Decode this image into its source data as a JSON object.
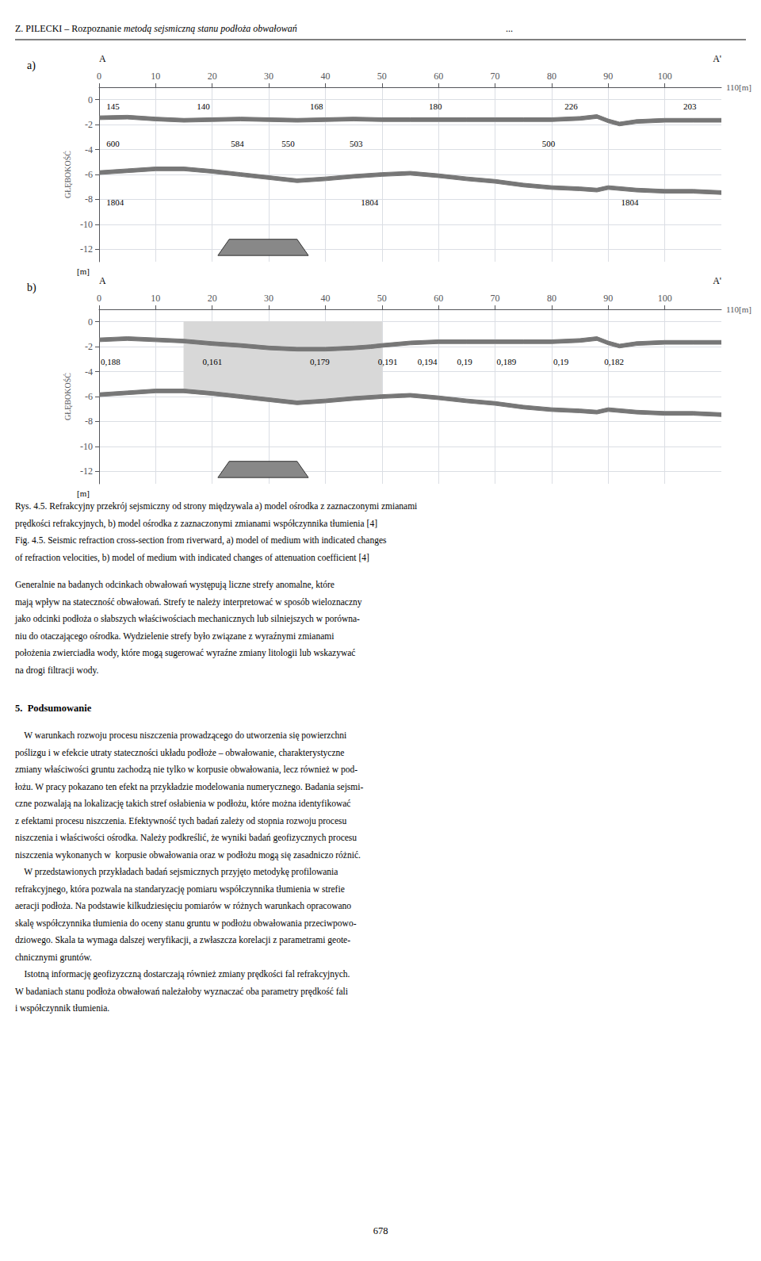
{
  "header": [
    "Z. PILECKI – Rozpoznanie ",
    "metodą sejsmiczną stanu podłoża obwałowań",
    "..."
  ],
  "chart_data": [
    {
      "type": "area",
      "title": "a)",
      "xlim": [
        0,
        110
      ],
      "xticks": [
        0,
        10,
        20,
        30,
        40,
        50,
        60,
        70,
        80,
        90,
        100
      ],
      "ylim": [
        -13,
        1
      ],
      "yticks": [
        0,
        -2,
        -4,
        -6,
        -8,
        -10,
        -12
      ],
      "ylabel": "GŁĘBOKOŚĆ",
      "xlabel": "110[m]",
      "y_unit": "[m]",
      "profile_start": "A",
      "profile_end": "A'",
      "grid": true,
      "series": [
        {
          "color": "#777777",
          "x": [
            0,
            5,
            10,
            15,
            20,
            25,
            30,
            35,
            40,
            45,
            50,
            55,
            60,
            65,
            70,
            75,
            80,
            85,
            88,
            90,
            92,
            95,
            100,
            105,
            110
          ],
          "top": [
            -1.3,
            -1.25,
            -1.4,
            -1.5,
            -1.45,
            -1.4,
            -1.45,
            -1.5,
            -1.45,
            -1.4,
            -1.45,
            -1.45,
            -1.45,
            -1.45,
            -1.45,
            -1.45,
            -1.45,
            -1.35,
            -1.2,
            -1.55,
            -1.8,
            -1.6,
            -1.5,
            -1.5,
            -1.5
          ],
          "bottom": [
            -1.6,
            -1.55,
            -1.7,
            -1.8,
            -1.75,
            -1.7,
            -1.75,
            -1.8,
            -1.75,
            -1.7,
            -1.75,
            -1.75,
            -1.75,
            -1.75,
            -1.75,
            -1.75,
            -1.75,
            -1.65,
            -1.5,
            -1.85,
            -2.1,
            -1.9,
            -1.8,
            -1.8,
            -1.8
          ]
        },
        {
          "color": "#777777",
          "x": [
            0,
            5,
            10,
            15,
            20,
            25,
            30,
            35,
            40,
            45,
            50,
            55,
            60,
            65,
            70,
            75,
            80,
            85,
            88,
            90,
            95,
            100,
            105,
            110
          ],
          "top": [
            -5.7,
            -5.55,
            -5.4,
            -5.4,
            -5.6,
            -5.85,
            -6.1,
            -6.35,
            -6.2,
            -6.0,
            -5.85,
            -5.75,
            -5.95,
            -6.2,
            -6.4,
            -6.7,
            -6.9,
            -7.0,
            -7.1,
            -6.9,
            -7.1,
            -7.2,
            -7.2,
            -7.3
          ],
          "bottom": [
            -6.0,
            -5.85,
            -5.7,
            -5.7,
            -5.9,
            -6.15,
            -6.4,
            -6.65,
            -6.5,
            -6.3,
            -6.15,
            -6.05,
            -6.25,
            -6.5,
            -6.7,
            -7.0,
            -7.2,
            -7.3,
            -7.4,
            -7.2,
            -7.4,
            -7.5,
            -7.5,
            -7.6
          ]
        }
      ],
      "shapes": [
        {
          "color": "#888888",
          "x": [
            21,
            37,
            35,
            23
          ],
          "y": [
            -12.5,
            -12.5,
            -11.2,
            -11.2
          ]
        }
      ],
      "labels": [
        {
          "text": "145",
          "x": 1,
          "y": -0.5
        },
        {
          "text": "140",
          "x": 17,
          "y": -0.5
        },
        {
          "text": "168",
          "x": 37,
          "y": -0.5
        },
        {
          "text": "180",
          "x": 58,
          "y": -0.5
        },
        {
          "text": "226",
          "x": 82,
          "y": -0.5
        },
        {
          "text": "203",
          "x": 103,
          "y": -0.5
        },
        {
          "text": "600",
          "x": 1,
          "y": -3.5
        },
        {
          "text": "584",
          "x": 23,
          "y": -3.5
        },
        {
          "text": "550",
          "x": 32,
          "y": -3.5
        },
        {
          "text": "503",
          "x": 44,
          "y": -3.5
        },
        {
          "text": "500",
          "x": 78,
          "y": -3.5
        },
        {
          "text": "1804",
          "x": 1,
          "y": -8.2
        },
        {
          "text": "1804",
          "x": 46,
          "y": -8.2
        },
        {
          "text": "1804",
          "x": 92,
          "y": -8.2
        }
      ]
    },
    {
      "type": "area",
      "title": "b)",
      "xlim": [
        0,
        110
      ],
      "xticks": [
        0,
        10,
        20,
        30,
        40,
        50,
        60,
        70,
        80,
        90,
        100
      ],
      "ylim": [
        -13,
        1
      ],
      "yticks": [
        0,
        -2,
        -4,
        -6,
        -8,
        -10,
        -12
      ],
      "ylabel": "GŁĘBOKOŚĆ",
      "xlabel": "110[m]",
      "y_unit": "[m]",
      "profile_start": "A",
      "profile_end": "A'",
      "grid": true,
      "series": [
        {
          "color": "#d8d8d8",
          "x": [
            15,
            20,
            25,
            30,
            35,
            40,
            45,
            50
          ],
          "top": [
            0,
            0,
            0,
            0,
            0,
            0,
            0,
            0
          ],
          "bottom": [
            -5.7,
            -5.9,
            -6.15,
            -6.4,
            -6.65,
            -6.5,
            -6.3,
            -6.15
          ]
        },
        {
          "color": "#777777",
          "x": [
            0,
            5,
            10,
            15,
            20,
            25,
            30,
            35,
            40,
            45,
            50,
            55,
            60,
            65,
            70,
            75,
            80,
            85,
            88,
            90,
            95,
            100,
            105,
            110
          ],
          "top": [
            -5.7,
            -5.55,
            -5.4,
            -5.4,
            -5.6,
            -5.85,
            -6.1,
            -6.35,
            -6.2,
            -6.0,
            -5.85,
            -5.75,
            -5.95,
            -6.2,
            -6.4,
            -6.7,
            -6.9,
            -7.0,
            -7.1,
            -6.9,
            -7.1,
            -7.2,
            -7.2,
            -7.3
          ],
          "bottom": [
            -6.0,
            -5.85,
            -5.7,
            -5.7,
            -5.9,
            -6.15,
            -6.4,
            -6.65,
            -6.5,
            -6.3,
            -6.15,
            -6.05,
            -6.25,
            -6.5,
            -6.7,
            -7.0,
            -7.2,
            -7.3,
            -7.4,
            -7.2,
            -7.4,
            -7.5,
            -7.5,
            -7.6
          ]
        },
        {
          "color": "#777777",
          "x": [
            0,
            5,
            10,
            15,
            20,
            25,
            30,
            35,
            40,
            45,
            48,
            50,
            55,
            60,
            65,
            70,
            75,
            80,
            85,
            88,
            90,
            92,
            95,
            100,
            105,
            110
          ],
          "top": [
            -1.3,
            -1.2,
            -1.3,
            -1.4,
            -1.6,
            -1.75,
            -1.95,
            -2.05,
            -2.05,
            -1.95,
            -1.85,
            -1.75,
            -1.55,
            -1.45,
            -1.45,
            -1.45,
            -1.45,
            -1.45,
            -1.35,
            -1.2,
            -1.55,
            -1.8,
            -1.6,
            -1.5,
            -1.5,
            -1.5
          ],
          "bottom": [
            -1.6,
            -1.5,
            -1.6,
            -1.7,
            -1.9,
            -2.05,
            -2.25,
            -2.35,
            -2.35,
            -2.25,
            -2.15,
            -2.05,
            -1.85,
            -1.75,
            -1.75,
            -1.75,
            -1.75,
            -1.75,
            -1.65,
            -1.5,
            -1.85,
            -2.1,
            -1.9,
            -1.8,
            -1.8,
            -1.8
          ]
        }
      ],
      "shapes": [
        {
          "color": "#888888",
          "x": [
            21,
            37,
            35,
            23
          ],
          "y": [
            -12.5,
            -12.5,
            -11.2,
            -11.2
          ]
        }
      ],
      "labels": [
        {
          "text": "0,188",
          "x": 0,
          "y": -3.2
        },
        {
          "text": "0,161",
          "x": 18,
          "y": -3.2
        },
        {
          "text": "0,179",
          "x": 37,
          "y": -3.2
        },
        {
          "text": "0,191",
          "x": 49,
          "y": -3.2
        },
        {
          "text": "0,194",
          "x": 56,
          "y": -3.2
        },
        {
          "text": "0,19",
          "x": 63,
          "y": -3.2
        },
        {
          "text": "0,189",
          "x": 70,
          "y": -3.2
        },
        {
          "text": "0,19",
          "x": 80,
          "y": -3.2
        },
        {
          "text": "0,182",
          "x": 89,
          "y": -3.2
        }
      ]
    }
  ],
  "caption": [
    "Rys. 4.5. Refrakcyjny przekrój sejsmiczny od strony międzywala a) model ośrodka z zaznaczonymi zmianami",
    "prędkości refrakcyjnych, b) model ośrodka z zaznaczonymi zmianami współczynnika tłumienia [4]",
    "Fig. 4.5. Seismic refraction cross-section from riverward, a) model of medium with indicated changes",
    "of refraction velocities, b) model of medium with indicated changes of attenuation coefficient [4]"
  ],
  "body": [
    "Generalnie na badanych odcinkach obwałowań występują liczne strefy anomalne, które",
    "mają wpływ na stateczność obwałowań. Strefy te należy interpretować w sposób wieloznaczny",
    "jako odcinki podłoża o słabszych właściwościach mechanicznych lub silniejszych w porówna-",
    "niu do otaczającego ośrodka. Wydzielenie strefy było związane z wyraźnymi zmianami",
    "położenia zwierciadła wody, które mogą sugerować wyraźne zmiany litologii lub wskazywać",
    "na drogi filtracji wody."
  ],
  "section_header": "5.  Podsumowanie",
  "body2": [
    "    W warunkach rozwoju procesu niszczenia prowadzącego do utworzenia się powierzchni",
    "poślizgu i w efekcie utraty stateczności układu podłoże – obwałowanie, charakterystyczne",
    "zmiany właściwości gruntu zachodzą nie tylko w korpusie obwałowania, lecz również w pod-",
    "łożu. W pracy pokazano ten efekt na przykładzie modelowania numerycznego. Badania sejsmi-",
    "czne pozwalają na lokalizację takich stref osłabienia w podłożu, które można identyfikować",
    "z efektami procesu niszczenia. Efektywność tych badań zależy od stopnia rozwoju procesu",
    "niszczenia i właściwości ośrodka. Należy podkreślić, że wyniki badań geofizycznych procesu",
    "niszczenia wykonanych w  korpusie obwałowania oraz w podłożu mogą się zasadniczo różnić.",
    "    W przedstawionych przykładach badań sejsmicznych przyjęto metodykę profilowania",
    "refrakcyjnego, która pozwala na standaryzację pomiaru współczynnika tłumienia w strefie",
    "aeracji podłoża. Na podstawie kilkudziesięciu pomiarów w różnych warunkach opracowano",
    "skalę współczynnika tłumienia do oceny stanu gruntu w podłożu obwałowania przeciwpowo-",
    "dziowego. Skala ta wymaga dalszej weryfikacji, a zwłaszcza korelacji z parametrami geote-",
    "chnicznymi gruntów.",
    "    Istotną informację geofizyzczną dostarczają również zmiany prędkości fal refrakcyjnych.",
    "W badaniach stanu podłoża obwałowań należałoby wyznaczać oba parametry prędkość fali",
    "i współczynnik tłumienia."
  ],
  "page_number": "678"
}
